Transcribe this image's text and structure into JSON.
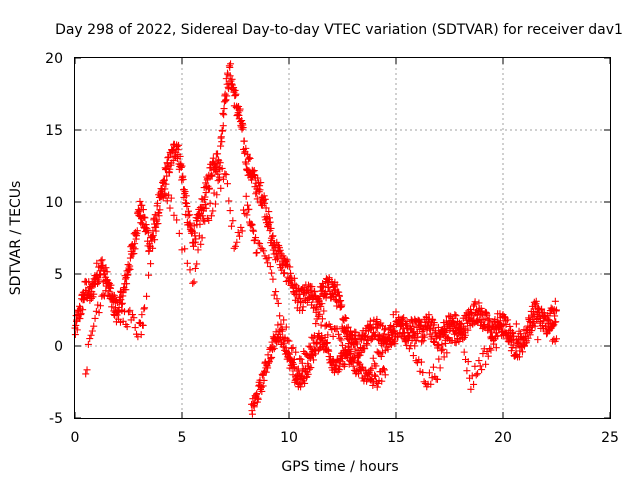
{
  "chart_data": {
    "type": "scatter",
    "title": "Day 298 of 2022, Sidereal Day-to-day VTEC variation (SDTVAR) for receiver dav1",
    "xlabel": "GPS time / hours",
    "ylabel": "SDTVAR / TECUs",
    "xlim": [
      0,
      25
    ],
    "ylim": [
      -5,
      20
    ],
    "xticks": [
      0,
      5,
      10,
      15,
      20,
      25
    ],
    "yticks": [
      -5,
      0,
      5,
      10,
      15,
      20
    ],
    "grid": true,
    "marker": "+",
    "color": "#ff0000",
    "series": [
      {
        "name": "dav1",
        "anchors_x": [
          0.0,
          0.25,
          0.5,
          0.75,
          1.0,
          1.25,
          1.5,
          1.75,
          2.0,
          2.25,
          2.5,
          2.75,
          3.0,
          3.25,
          3.5,
          3.75,
          4.0,
          4.25,
          4.5,
          4.75,
          5.0,
          5.25,
          5.5,
          5.75,
          6.0,
          6.25,
          6.5,
          6.75,
          7.0,
          7.25,
          7.5,
          7.75,
          8.0,
          8.25,
          8.5,
          8.75,
          9.0,
          9.25,
          9.5,
          9.75,
          10.0,
          10.25,
          10.5,
          10.75,
          11.0,
          11.25,
          11.5,
          11.75,
          12.0,
          12.25,
          12.5,
          12.75,
          13.0,
          13.25,
          13.5,
          13.75,
          14.0,
          14.25,
          14.5,
          14.75,
          15.0,
          15.25,
          15.5,
          15.75,
          16.0,
          16.25,
          16.5,
          16.75,
          17.0,
          17.25,
          17.5,
          17.75,
          18.0,
          18.25,
          18.5,
          18.75,
          19.0,
          19.25,
          19.5,
          19.75,
          20.0,
          20.25,
          20.5,
          20.75,
          21.0,
          21.25,
          21.5,
          21.75,
          22.0,
          22.25,
          22.5
        ],
        "anchors_y": [
          1.0,
          2.5,
          4.0,
          3.5,
          5.0,
          5.5,
          4.5,
          3.0,
          2.5,
          3.5,
          5.5,
          7.0,
          9.5,
          8.5,
          7.0,
          8.5,
          10.0,
          12.0,
          13.0,
          14.0,
          12.0,
          9.0,
          7.5,
          8.5,
          10.0,
          11.5,
          13.0,
          12.5,
          17.5,
          19.0,
          17.0,
          15.5,
          13.0,
          12.0,
          11.0,
          10.5,
          9.0,
          7.0,
          6.5,
          5.5,
          5.0,
          4.0,
          3.0,
          3.5,
          3.5,
          3.0,
          3.5,
          4.0,
          4.0,
          3.5,
          2.0,
          1.0,
          0.5,
          0.0,
          0.5,
          1.0,
          1.5,
          1.0,
          0.5,
          0.5,
          1.0,
          1.5,
          1.0,
          1.5,
          1.0,
          1.0,
          1.5,
          1.0,
          0.5,
          1.0,
          1.5,
          1.5,
          1.0,
          1.5,
          2.0,
          2.5,
          2.0,
          1.5,
          1.0,
          1.5,
          1.5,
          1.0,
          0.0,
          0.0,
          0.5,
          1.5,
          2.5,
          2.0,
          1.5,
          2.0,
          2.5
        ],
        "secondary_x": [
          0.5,
          1.0,
          1.5,
          2.0,
          2.5,
          3.0,
          3.25,
          4.0,
          4.5,
          5.5,
          6.0,
          6.5,
          7.0,
          7.5,
          8.0,
          8.25,
          8.5,
          9.0,
          9.5,
          10.0,
          10.5,
          11.0,
          11.5,
          12.0,
          12.5,
          13.0,
          13.5,
          14.0,
          14.5,
          15.0,
          15.5,
          16.0,
          16.5,
          17.0,
          17.5,
          18.0,
          18.5,
          19.0,
          19.5,
          20.0,
          21.0,
          22.0,
          22.5
        ],
        "secondary_y": [
          -1.5,
          2.5,
          4.5,
          2.0,
          2.0,
          1.0,
          2.0,
          11.0,
          10.0,
          4.5,
          8.5,
          10.0,
          12.5,
          6.5,
          10.0,
          8.0,
          7.0,
          6.0,
          2.5,
          0.0,
          -1.5,
          0.5,
          2.0,
          1.0,
          0.0,
          -1.5,
          -2.0,
          -1.0,
          0.0,
          2.0,
          0.5,
          -1.0,
          -2.5,
          -1.5,
          0.5,
          1.0,
          -2.5,
          -1.0,
          0.0,
          1.5,
          0.5,
          1.5,
          0.5
        ],
        "tertiary_x": [
          8.25,
          8.5,
          8.75,
          9.0,
          9.25,
          9.5,
          9.75,
          10.0,
          10.25,
          10.5,
          10.75,
          11.0,
          11.25,
          11.5,
          11.75,
          12.0,
          12.25,
          12.5,
          12.75,
          13.0,
          13.5,
          14.0,
          14.5
        ],
        "tertiary_y": [
          -4.5,
          -3.5,
          -2.5,
          -1.0,
          0.0,
          1.0,
          0.5,
          -1.0,
          -2.0,
          -2.5,
          -2.0,
          -1.0,
          0.0,
          0.5,
          0.0,
          -1.0,
          -1.5,
          -1.0,
          -0.5,
          -1.0,
          -2.0,
          -2.5,
          -2.0
        ]
      }
    ]
  }
}
